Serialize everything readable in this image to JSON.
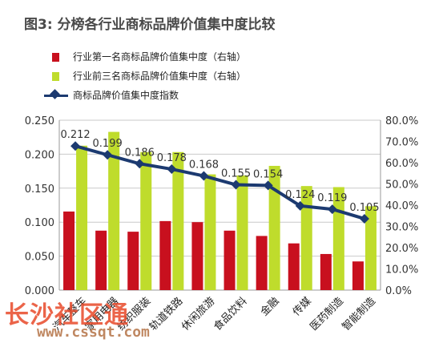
{
  "title": "图3: 分榜各行业商标品牌价值集中度比较",
  "legend": [
    {
      "label": "行业第一名商标品牌价值集中度（右轴）"
    },
    {
      "label": "行业前三名商标品牌价值集中度（右轴）"
    },
    {
      "label": "商标品牌价值集中度指数"
    }
  ],
  "colors": {
    "top1": "#c8101e",
    "top3": "#bfdc2c",
    "index": "#1c3a70",
    "grid": "#c9c9c9"
  },
  "chart_data": {
    "type": "bar",
    "categories": [
      "汽车整车",
      "家用电器",
      "纺织服装",
      "轨道铁路",
      "休闲旅游",
      "食品饮料",
      "金融",
      "传媒",
      "医药制造",
      "智能制造"
    ],
    "series": [
      {
        "name": "行业第一名商标品牌价值集中度（右轴）",
        "axis": "right",
        "values": [
          0.37,
          0.28,
          0.275,
          0.325,
          0.32,
          0.28,
          0.255,
          0.22,
          0.17,
          0.135
        ]
      },
      {
        "name": "行业前三名商标品牌价值集中度（右轴）",
        "axis": "right",
        "values": [
          0.68,
          0.745,
          0.65,
          0.65,
          0.545,
          0.54,
          0.585,
          0.49,
          0.485,
          0.395
        ]
      },
      {
        "name": "商标品牌价值集中度指数",
        "axis": "left",
        "type": "line",
        "values": [
          0.212,
          0.199,
          0.186,
          0.178,
          0.168,
          0.155,
          0.154,
          0.124,
          0.119,
          0.105
        ]
      }
    ],
    "data_labels": [
      "0.212",
      "0.199",
      "0.186",
      "0.178",
      "0.168",
      "0.155",
      "0.154",
      "0.124",
      "0.119",
      "0.105"
    ],
    "y_left": {
      "ticks": [
        "0.000",
        "0.050",
        "0.100",
        "0.150",
        "0.200",
        "0.250"
      ],
      "ylim": [
        0,
        0.25
      ]
    },
    "y_right": {
      "ticks": [
        "0.0%",
        "10.0%",
        "20.0%",
        "30.0%",
        "40.0%",
        "50.0%",
        "60.0%",
        "70.0%",
        "80.0%"
      ],
      "ylim": [
        0,
        0.8
      ]
    },
    "grid": true,
    "legend_position": "top-left"
  },
  "watermark": {
    "text": "长沙社区通",
    "url": "www.cssqt.com"
  }
}
